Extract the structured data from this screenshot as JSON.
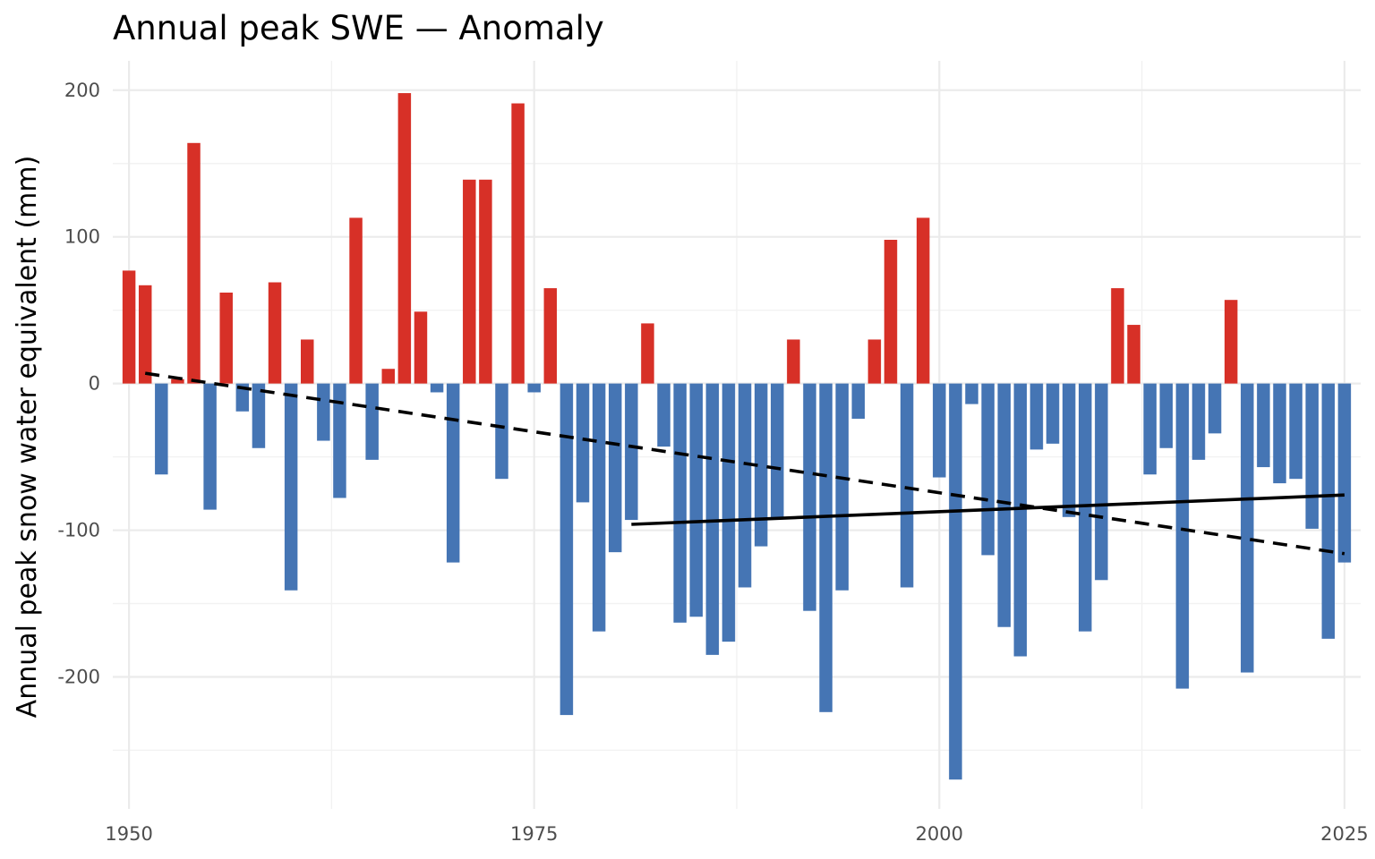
{
  "chart_data": {
    "type": "bar",
    "title": "Annual peak SWE — Anomaly",
    "xlabel": "",
    "ylabel": "Annual peak snow water equivalent (mm)",
    "xlim": [
      1949,
      2026
    ],
    "ylim": [
      -290,
      220
    ],
    "x_ticks": [
      1950,
      1975,
      2000,
      2025
    ],
    "y_ticks": [
      200,
      100,
      0,
      -100,
      -200
    ],
    "grid": true,
    "legend": "none",
    "colors": {
      "positive": "#d73027",
      "negative": "#4575b4",
      "grid_major": "#ebebeb",
      "grid_minor": "#f2f2f2",
      "trend": "#000000"
    },
    "x": [
      1950,
      1951,
      1952,
      1953,
      1954,
      1955,
      1956,
      1957,
      1958,
      1959,
      1960,
      1961,
      1962,
      1963,
      1964,
      1965,
      1966,
      1967,
      1968,
      1969,
      1970,
      1971,
      1972,
      1973,
      1974,
      1975,
      1976,
      1977,
      1978,
      1979,
      1980,
      1981,
      1982,
      1983,
      1984,
      1985,
      1986,
      1987,
      1988,
      1989,
      1990,
      1991,
      1992,
      1993,
      1994,
      1995,
      1996,
      1997,
      1998,
      1999,
      2000,
      2001,
      2002,
      2003,
      2004,
      2005,
      2006,
      2007,
      2008,
      2009,
      2010,
      2011,
      2012,
      2013,
      2014,
      2015,
      2016,
      2017,
      2018,
      2019,
      2020,
      2021,
      2022,
      2023,
      2024,
      2025
    ],
    "values": [
      77,
      67,
      -62,
      3,
      164,
      -86,
      62,
      -19,
      -44,
      69,
      -141,
      30,
      -39,
      -78,
      113,
      -52,
      10,
      198,
      49,
      -6,
      -122,
      139,
      139,
      -65,
      191,
      -6,
      65,
      -226,
      -81,
      -169,
      -115,
      -93,
      41,
      -43,
      -163,
      -159,
      -185,
      -176,
      -139,
      -111,
      -92,
      30,
      -155,
      -224,
      -141,
      -24,
      30,
      98,
      -139,
      113,
      -64,
      -270,
      -14,
      -117,
      -166,
      -186,
      -45,
      -41,
      -91,
      -169,
      -134,
      65,
      40,
      -62,
      -44,
      -208,
      -52,
      -34,
      57,
      -197,
      -57,
      -68,
      -65,
      -99,
      -174,
      -122
    ],
    "trend_lines": [
      {
        "style": "dashed",
        "x": [
          1951,
          2025
        ],
        "y": [
          7,
          -116
        ]
      },
      {
        "style": "solid",
        "x": [
          1981,
          2025
        ],
        "y": [
          -96,
          -76
        ]
      }
    ]
  }
}
